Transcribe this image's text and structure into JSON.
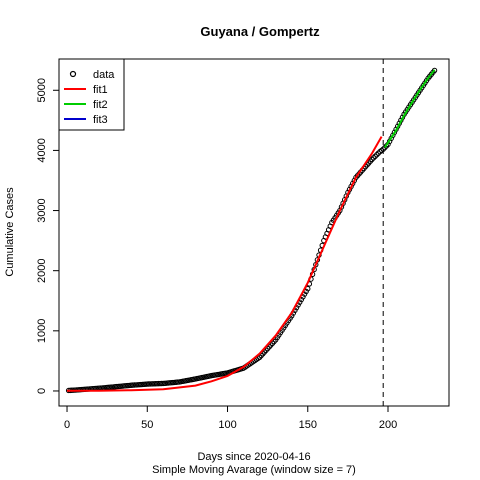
{
  "chart_data": {
    "type": "scatter",
    "title": "Guyana / Gompertz",
    "xlabel": "Days since 2020-04-16",
    "xlabel_sub": "Simple Moving Avarage (window size = 7)",
    "ylabel": "Cumulative Cases",
    "xlim": [
      -5,
      238
    ],
    "ylim": [
      -250,
      5520
    ],
    "x_ticks": [
      0,
      50,
      100,
      150,
      200
    ],
    "y_ticks": [
      0,
      1000,
      2000,
      3000,
      4000,
      5000
    ],
    "cutoff_x": 197,
    "legend": {
      "position": "top-left",
      "entries": [
        {
          "label": "data",
          "kind": "point",
          "color": "#000000"
        },
        {
          "label": "fit1",
          "kind": "line",
          "color": "#ff0000"
        },
        {
          "label": "fit2",
          "kind": "line",
          "color": "#00cc00"
        },
        {
          "label": "fit3",
          "kind": "line",
          "color": "#0000cc"
        }
      ]
    },
    "data_anchors": {
      "x": [
        1,
        10,
        20,
        30,
        40,
        50,
        60,
        70,
        80,
        90,
        100,
        110,
        120,
        130,
        140,
        150,
        155,
        160,
        165,
        170,
        175,
        180,
        185,
        190,
        195,
        197,
        200,
        205,
        210,
        215,
        220,
        225,
        229
      ],
      "y": [
        8,
        25,
        45,
        70,
        95,
        115,
        125,
        150,
        200,
        255,
        300,
        380,
        560,
        850,
        1250,
        1700,
        2100,
        2500,
        2800,
        3000,
        3300,
        3550,
        3700,
        3850,
        3980,
        4020,
        4100,
        4350,
        4600,
        4800,
        5000,
        5200,
        5330
      ]
    },
    "fit1": {
      "x": [
        0,
        20,
        40,
        60,
        80,
        90,
        100,
        110,
        120,
        130,
        140,
        150,
        160,
        170,
        180,
        190,
        196
      ],
      "y": [
        3,
        5,
        12,
        30,
        90,
        160,
        250,
        400,
        620,
        920,
        1300,
        1800,
        2400,
        3000,
        3550,
        3950,
        4230
      ]
    },
    "fit2": {
      "x": [
        198,
        205,
        210,
        215,
        220,
        225,
        229
      ],
      "y": [
        4050,
        4330,
        4580,
        4800,
        5010,
        5200,
        5340
      ]
    },
    "colors": {
      "data": "#000000",
      "fit1": "#ff0000",
      "fit2": "#00cc00",
      "fit3": "#0000cc"
    }
  }
}
